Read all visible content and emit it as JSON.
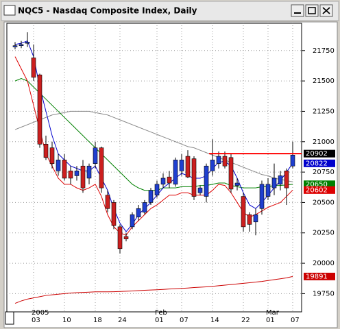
{
  "chart_data": {
    "type": "candlestick",
    "title": "NQC5 - Nasdaq Composite Index, Daily",
    "categories": [
      null,
      null,
      null,
      "03",
      null,
      null,
      null,
      null,
      "10",
      null,
      null,
      null,
      null,
      "18",
      null,
      null,
      null,
      "24",
      null,
      null,
      null,
      null,
      null,
      "01",
      null,
      null,
      null,
      "07",
      null,
      null,
      null,
      null,
      "14",
      null,
      null,
      null,
      null,
      "22",
      null,
      null,
      null,
      "01",
      null,
      null,
      null,
      "07"
    ],
    "month_labels": [
      null,
      null,
      null,
      "2005",
      null,
      null,
      null,
      null,
      null,
      null,
      null,
      null,
      null,
      null,
      null,
      null,
      null,
      null,
      null,
      null,
      null,
      null,
      null,
      "Feb",
      null,
      null,
      null,
      null,
      null,
      null,
      null,
      null,
      null,
      null,
      null,
      null,
      null,
      null,
      null,
      null,
      null,
      "Mar",
      null,
      null,
      null,
      null
    ],
    "open": [
      21780,
      21790,
      21810,
      21690,
      21550,
      20980,
      20950,
      20760,
      20850,
      20760,
      20720,
      20800,
      20700,
      20820,
      20950,
      20560,
      20500,
      20300,
      20220,
      20300,
      20380,
      20420,
      20500,
      20560,
      20650,
      20710,
      20650,
      20760,
      20880,
      20860,
      20580,
      20550,
      20760,
      20820,
      20880,
      20870,
      20640,
      20550,
      20400,
      20340,
      20450,
      20550,
      20620,
      20650,
      20760,
      20800
    ],
    "high": [
      21820,
      21830,
      21900,
      21800,
      21560,
      21050,
      21000,
      20900,
      20900,
      20800,
      20800,
      20850,
      20820,
      21000,
      20960,
      20600,
      20520,
      20320,
      20250,
      20420,
      20480,
      20520,
      20620,
      20680,
      20740,
      20760,
      20870,
      20900,
      20930,
      20880,
      20640,
      20820,
      21020,
      20920,
      20920,
      20900,
      20700,
      20580,
      20420,
      20450,
      20680,
      20700,
      20820,
      20760,
      20780,
      21000
    ],
    "low": [
      21760,
      21770,
      21780,
      21500,
      20950,
      20850,
      20780,
      20720,
      20680,
      20650,
      20680,
      20580,
      20650,
      20780,
      20580,
      20420,
      20280,
      20080,
      20180,
      20280,
      20350,
      20400,
      20480,
      20540,
      20620,
      20620,
      20630,
      20720,
      20700,
      20520,
      20560,
      20500,
      20720,
      20780,
      20780,
      20580,
      20600,
      20260,
      20260,
      20230,
      20400,
      20520,
      20560,
      20600,
      20480,
      20780
    ],
    "close": [
      21790,
      21800,
      21820,
      21530,
      20980,
      20870,
      20820,
      20850,
      20700,
      20700,
      20760,
      20620,
      20800,
      20950,
      20620,
      20450,
      20310,
      20120,
      20200,
      20400,
      20450,
      20500,
      20600,
      20650,
      20700,
      20660,
      20850,
      20850,
      20710,
      20550,
      20620,
      20800,
      20850,
      20880,
      20800,
      20610,
      20660,
      20300,
      20320,
      20400,
      20650,
      20650,
      20700,
      20720,
      20620,
      20890
    ],
    "up_color": "#1f3fcf",
    "down_color": "#cc1f1f",
    "series": [
      {
        "color": "#888888",
        "last_label": false,
        "values": [
          21100,
          21120,
          21140,
          21160,
          21180,
          21200,
          21220,
          21230,
          21240,
          21250,
          21250,
          21250,
          21250,
          21240,
          21230,
          21220,
          21200,
          21180,
          21160,
          21140,
          21120,
          21100,
          21080,
          21060,
          21040,
          21020,
          21000,
          20980,
          20960,
          20950,
          20930,
          20910,
          20890,
          20870,
          20850,
          20830,
          20810,
          20790,
          20770,
          20750,
          20730,
          20720,
          20700,
          20690,
          20680,
          20670
        ]
      },
      {
        "color": "#008000",
        "last_label": true,
        "values": [
          21500,
          21520,
          21500,
          21450,
          21400,
          21350,
          21300,
          21250,
          21200,
          21150,
          21100,
          21050,
          21000,
          20950,
          20900,
          20850,
          20800,
          20750,
          20700,
          20650,
          20620,
          20600,
          20600,
          20600,
          20620,
          20620,
          20620,
          20630,
          20630,
          20630,
          20640,
          20640,
          20650,
          20660,
          20660,
          20640,
          20630,
          20620,
          20620,
          20620,
          20630,
          20630,
          20640,
          20640,
          20645,
          20650
        ]
      },
      {
        "color": "#0000cc",
        "last_label": true,
        "values": [
          21800,
          21810,
          21830,
          21700,
          21450,
          21250,
          21050,
          20900,
          20850,
          20800,
          20780,
          20760,
          20760,
          20800,
          20700,
          20600,
          20450,
          20330,
          20260,
          20320,
          20400,
          20450,
          20500,
          20560,
          20620,
          20660,
          20700,
          20740,
          20720,
          20700,
          20700,
          20720,
          20780,
          20830,
          20840,
          20800,
          20700,
          20580,
          20480,
          20450,
          20500,
          20560,
          20620,
          20680,
          20750,
          20822
        ]
      },
      {
        "color": "#dd0000",
        "last_label": true,
        "values": [
          21700,
          21600,
          21500,
          21300,
          21100,
          20900,
          20800,
          20700,
          20650,
          20650,
          20620,
          20600,
          20620,
          20650,
          20550,
          20400,
          20300,
          20250,
          20230,
          20300,
          20350,
          20400,
          20450,
          20480,
          20520,
          20560,
          20560,
          20580,
          20580,
          20560,
          20560,
          20560,
          20600,
          20650,
          20640,
          20580,
          20500,
          20420,
          20380,
          20400,
          20430,
          20460,
          20480,
          20500,
          20550,
          20602
        ]
      },
      {
        "color": "#cc0000",
        "last_label": true,
        "values": [
          19670,
          19690,
          19705,
          19715,
          19725,
          19735,
          19740,
          19745,
          19750,
          19755,
          19758,
          19760,
          19762,
          19765,
          19765,
          19765,
          19766,
          19768,
          19770,
          19772,
          19775,
          19778,
          19780,
          19782,
          19785,
          19788,
          19790,
          19793,
          19796,
          19800,
          19803,
          19806,
          19810,
          19815,
          19820,
          19825,
          19830,
          19835,
          19840,
          19845,
          19850,
          19858,
          19865,
          19872,
          19880,
          19891
        ]
      }
    ],
    "level": {
      "value": 20902,
      "color": "#ff0000"
    },
    "ylim": [
      19600,
      21980
    ],
    "yticks": [
      19750,
      20000,
      20250,
      20500,
      20750,
      21000,
      21250,
      21500,
      21750
    ],
    "grid": true
  }
}
